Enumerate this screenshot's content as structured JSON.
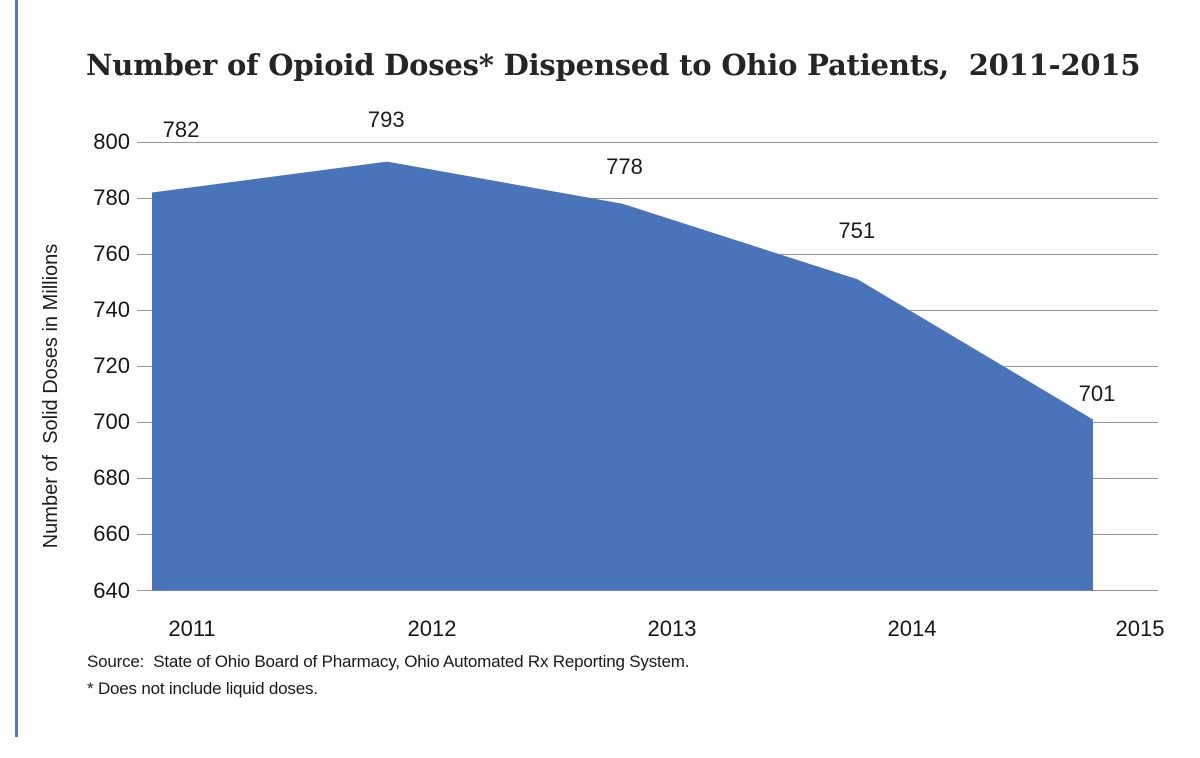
{
  "page": {
    "background": "#ffffff",
    "accent_bar_color": "#4e7cb9"
  },
  "chart_data": {
    "type": "area",
    "title": "Number of Opioid Doses* Dispensed to Ohio Patients,  2011-2015",
    "categories": [
      "2011",
      "2012",
      "2013",
      "2014",
      "2015"
    ],
    "values": [
      782,
      793,
      778,
      751,
      701
    ],
    "xlabel": "",
    "ylabel": "Number of  Solid Doses in Millions",
    "ylim": [
      640,
      800
    ],
    "ytick_step": 20,
    "yticks": [
      800,
      780,
      760,
      740,
      720,
      700,
      680,
      660,
      640
    ],
    "grid": true,
    "legend": false,
    "data_labels_shown": true,
    "area_color": "#4a74ba",
    "gridline_color": "#959595"
  },
  "footnotes": {
    "source": "Source:  State of Ohio Board of Pharmacy, Ohio Automated Rx Reporting System.",
    "asterisk": "* Does not include liquid doses."
  }
}
